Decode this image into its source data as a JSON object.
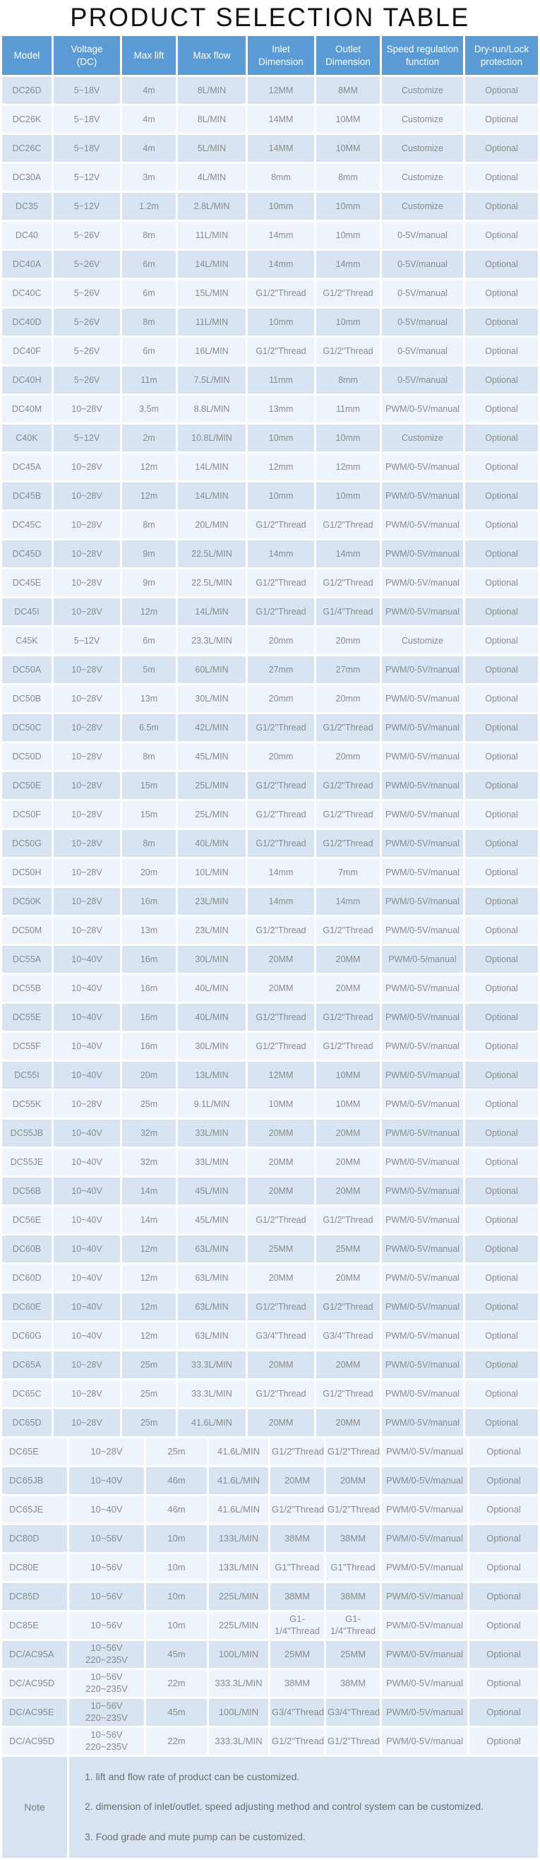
{
  "title": "PRODUCT SELECTION TABLE",
  "colors": {
    "header_bg": "#5b9bd5",
    "header_text": "#ffffff",
    "row_dark": "#d9e4f2",
    "row_light": "#eef4fb",
    "note_bg": "#d7e3f1",
    "cell_text": "#8a8a8a",
    "title_text": "#111111"
  },
  "table": {
    "columns": [
      "Model",
      "Voltage\n(DC)",
      "Max lift",
      "Max flow",
      "Inlet\nDimension",
      "Outlet\nDimension",
      "Speed regulation\nfunction",
      "Dry-run/Lock\nprotection"
    ],
    "fields": [
      "model",
      "voltage",
      "max_lift",
      "max_flow",
      "inlet",
      "outlet",
      "speed",
      "protection"
    ],
    "sections": [
      {
        "name": "upper",
        "start_index": 0,
        "rows": [
          {
            "model": "DC26D",
            "voltage": "5~18V",
            "max_lift": "4m",
            "max_flow": "8L/MIN",
            "inlet": "12MM",
            "outlet": "8MM",
            "speed": "Customize",
            "protection": "Optional"
          },
          {
            "model": "DC26K",
            "voltage": "5~18V",
            "max_lift": "4m",
            "max_flow": "8L/MIN",
            "inlet": "14MM",
            "outlet": "10MM",
            "speed": "Customize",
            "protection": "Optional"
          },
          {
            "model": "DC26C",
            "voltage": "5~18V",
            "max_lift": "4m",
            "max_flow": "5L/MIN",
            "inlet": "14MM",
            "outlet": "10MM",
            "speed": "Customize",
            "protection": "Optional"
          },
          {
            "model": "DC30A",
            "voltage": "5~12V",
            "max_lift": "3m",
            "max_flow": "4L/MIN",
            "inlet": "8mm",
            "outlet": "8mm",
            "speed": "Customize",
            "protection": "Optional"
          },
          {
            "model": "DC35",
            "voltage": "5~12V",
            "max_lift": "1.2m",
            "max_flow": "2.8L/MIN",
            "inlet": "10mm",
            "outlet": "10mm",
            "speed": "Customize",
            "protection": "Optional"
          },
          {
            "model": "DC40",
            "voltage": "5~26V",
            "max_lift": "8m",
            "max_flow": "11L/MIN",
            "inlet": "14mm",
            "outlet": "10mm",
            "speed": "0-5V/manual",
            "protection": "Optional"
          },
          {
            "model": "DC40A",
            "voltage": "5~26V",
            "max_lift": "6m",
            "max_flow": "14L/MIN",
            "inlet": "14mm",
            "outlet": "14mm",
            "speed": "0-5V/manual",
            "protection": "Optional"
          },
          {
            "model": "DC40C",
            "voltage": "5~26V",
            "max_lift": "6m",
            "max_flow": "15L/MIN",
            "inlet": "G1/2\"Thread",
            "outlet": "G1/2\"Thread",
            "speed": "0-5V/manual",
            "protection": "Optional"
          },
          {
            "model": "DC40D",
            "voltage": "5~26V",
            "max_lift": "8m",
            "max_flow": "11L/MIN",
            "inlet": "10mm",
            "outlet": "10mm",
            "speed": "0-5V/manual",
            "protection": "Optional"
          },
          {
            "model": "DC40F",
            "voltage": "5~26V",
            "max_lift": "6m",
            "max_flow": "16L/MIN",
            "inlet": "G1/2\"Thread",
            "outlet": "G1/2\"Thread",
            "speed": "0-5V/manual",
            "protection": "Optional"
          },
          {
            "model": "DC40H",
            "voltage": "5~26V",
            "max_lift": "11m",
            "max_flow": "7.5L/MIN",
            "inlet": "11mm",
            "outlet": "8mm",
            "speed": "0-5V/manual",
            "protection": "Optional"
          },
          {
            "model": "DC40M",
            "voltage": "10~28V",
            "max_lift": "3.5m",
            "max_flow": "8.8L/MIN",
            "inlet": "13mm",
            "outlet": "11mm",
            "speed": "PWM/0-5V/manual",
            "protection": "Optional"
          },
          {
            "model": "C40K",
            "voltage": "5~12V",
            "max_lift": "2m",
            "max_flow": "10.8L/MIN",
            "inlet": "10mm",
            "outlet": "10mm",
            "speed": "Customize",
            "protection": "Optional"
          },
          {
            "model": "DC45A",
            "voltage": "10~28V",
            "max_lift": "12m",
            "max_flow": "14L/MIN",
            "inlet": "12mm",
            "outlet": "12mm",
            "speed": "PWM/0-5V/manual",
            "protection": "Optional"
          },
          {
            "model": "DC45B",
            "voltage": "10~28V",
            "max_lift": "12m",
            "max_flow": "14L/MIN",
            "inlet": "10mm",
            "outlet": "10mm",
            "speed": "PWM/0-5V/manual",
            "protection": "Optional"
          },
          {
            "model": "DC45C",
            "voltage": "10~28V",
            "max_lift": "8m",
            "max_flow": "20L/MIN",
            "inlet": "G1/2\"Thread",
            "outlet": "G1/2\"Thread",
            "speed": "PWM/0-5V/manual",
            "protection": "Optional"
          },
          {
            "model": "DC45D",
            "voltage": "10~28V",
            "max_lift": "9m",
            "max_flow": "22.5L/MIN",
            "inlet": "14mm",
            "outlet": "14mm",
            "speed": "PWM/0-5V/manual",
            "protection": "Optional"
          },
          {
            "model": "DC45E",
            "voltage": "10~28V",
            "max_lift": "9m",
            "max_flow": "22.5L/MIN",
            "inlet": "G1/2\"Thread",
            "outlet": "G1/2\"Thread",
            "speed": "PWM/0-5V/manual",
            "protection": "Optional"
          },
          {
            "model": "DC45I",
            "voltage": "10~28V",
            "max_lift": "12m",
            "max_flow": "14L/MIN",
            "inlet": "G1/2\"Thread",
            "outlet": "G1/4\"Thread",
            "speed": "PWM/0-5V/manual",
            "protection": "Optional"
          },
          {
            "model": "C45K",
            "voltage": "5~12V",
            "max_lift": "6m",
            "max_flow": "23.3L/MIN",
            "inlet": "20mm",
            "outlet": "20mm",
            "speed": "Customize",
            "protection": "Optional"
          },
          {
            "model": "DC50A",
            "voltage": "10~28V",
            "max_lift": "5m",
            "max_flow": "60L/MIN",
            "inlet": "27mm",
            "outlet": "27mm",
            "speed": "PWM/0-5V/manual",
            "protection": "Optional"
          },
          {
            "model": "DC50B",
            "voltage": "10~28V",
            "max_lift": "13m",
            "max_flow": "30L/MIN",
            "inlet": "20mm",
            "outlet": "20mm",
            "speed": "PWM/0-5V/manual",
            "protection": "Optional"
          },
          {
            "model": "DC50C",
            "voltage": "10~28V",
            "max_lift": "6.5m",
            "max_flow": "42L/MIN",
            "inlet": "G1/2\"Thread",
            "outlet": "G1/2\"Thread",
            "speed": "PWM/0-5V/manual",
            "protection": "Optional"
          },
          {
            "model": "DC50D",
            "voltage": "10~28V",
            "max_lift": "8m",
            "max_flow": "45L/MIN",
            "inlet": "20mm",
            "outlet": "20mm",
            "speed": "PWM/0-5V/manual",
            "protection": "Optional"
          },
          {
            "model": "DC50E",
            "voltage": "10~28V",
            "max_lift": "15m",
            "max_flow": "25L/MIN",
            "inlet": "G1/2\"Thread",
            "outlet": "G1/2\"Thread",
            "speed": "PWM/0-5V/manual",
            "protection": "Optional"
          },
          {
            "model": "DC50F",
            "voltage": "10~28V",
            "max_lift": "15m",
            "max_flow": "25L/MIN",
            "inlet": "G1/2\"Thread",
            "outlet": "G1/2\"Thread",
            "speed": "PWM/0-5V/manual",
            "protection": "Optional"
          },
          {
            "model": "DC50G",
            "voltage": "10~28V",
            "max_lift": "8m",
            "max_flow": "40L/MIN",
            "inlet": "G1/2\"Thread",
            "outlet": "G1/2\"Thread",
            "speed": "PWM/0-5V/manual",
            "protection": "Optional"
          },
          {
            "model": "DC50H",
            "voltage": "10~28V",
            "max_lift": "20m",
            "max_flow": "10L/MIN",
            "inlet": "14mm",
            "outlet": "7mm",
            "speed": "PWM/0-5V/manual",
            "protection": "Optional"
          },
          {
            "model": "DC50K",
            "voltage": "10~28V",
            "max_lift": "16m",
            "max_flow": "23L/MIN",
            "inlet": "14mm",
            "outlet": "14mm",
            "speed": "PWM/0-5V/manual",
            "protection": "Optional"
          },
          {
            "model": "DC50M",
            "voltage": "10~28V",
            "max_lift": "13m",
            "max_flow": "23L/MIN",
            "inlet": "G1/2\"Thread",
            "outlet": "G1/2\"Thread",
            "speed": "PWM/0-5V/manual",
            "protection": "Optional"
          },
          {
            "model": "DC55A",
            "voltage": "10~40V",
            "max_lift": "16m",
            "max_flow": "30L/MIN",
            "inlet": "20MM",
            "outlet": "20MM",
            "speed": "PWM/0-5/manual",
            "protection": "Optional"
          },
          {
            "model": "DC55B",
            "voltage": "10~40V",
            "max_lift": "16m",
            "max_flow": "40L/MIN",
            "inlet": "20MM",
            "outlet": "20MM",
            "speed": "PWM/0-5V/manual",
            "protection": "Optional"
          },
          {
            "model": "DC55E",
            "voltage": "10~40V",
            "max_lift": "16m",
            "max_flow": "40L/MIN",
            "inlet": "G1/2\"Thread",
            "outlet": "G1/2\"Thread",
            "speed": "PWM/0-5V/manual",
            "protection": "Optional"
          },
          {
            "model": "DC55F",
            "voltage": "10~40V",
            "max_lift": "16m",
            "max_flow": "30L/MIN",
            "inlet": "G1/2\"Thread",
            "outlet": "G1/2\"Thread",
            "speed": "PWM/0-5V/manual",
            "protection": "Optional"
          },
          {
            "model": "DC55I",
            "voltage": "10~40V",
            "max_lift": "20m",
            "max_flow": "13L/MIN",
            "inlet": "12MM",
            "outlet": "10MM",
            "speed": "PWM/0-5V/manual",
            "protection": "Optional"
          },
          {
            "model": "DC55K",
            "voltage": "10~28V",
            "max_lift": "25m",
            "max_flow": "9.1L/MIN",
            "inlet": "10MM",
            "outlet": "10MM",
            "speed": "PWM/0-5V/manual",
            "protection": "Optional"
          },
          {
            "model": "DC55JB",
            "voltage": "10~40V",
            "max_lift": "32m",
            "max_flow": "33L/MIN",
            "inlet": "20MM",
            "outlet": "20MM",
            "speed": "PWM/0-5V/manual",
            "protection": "Optional"
          },
          {
            "model": "DC55JE",
            "voltage": "10~40V",
            "max_lift": "32m",
            "max_flow": "33L/MIN",
            "inlet": "20MM",
            "outlet": "20MM",
            "speed": "PWM/0-5V/manual",
            "protection": "Optional"
          },
          {
            "model": "DC56B",
            "voltage": "10~40V",
            "max_lift": "14m",
            "max_flow": "45L/MIN",
            "inlet": "20MM",
            "outlet": "20MM",
            "speed": "PWM/0-5V/manual",
            "protection": "Optional"
          },
          {
            "model": "DC56E",
            "voltage": "10~40V",
            "max_lift": "14m",
            "max_flow": "45L/MIN",
            "inlet": "G1/2\"Thread",
            "outlet": "G1/2\"Thread",
            "speed": "PWM/0-5V/manual",
            "protection": "Optional"
          },
          {
            "model": "DC60B",
            "voltage": "10~40V",
            "max_lift": "12m",
            "max_flow": "63L/MIN",
            "inlet": "25MM",
            "outlet": "25MM",
            "speed": "PWM/0-5V/manual",
            "protection": "Optional"
          },
          {
            "model": "DC60D",
            "voltage": "10~40V",
            "max_lift": "12m",
            "max_flow": "63L/MIN",
            "inlet": "20MM",
            "outlet": "20MM",
            "speed": "PWM/0-5V/manual",
            "protection": "Optional"
          },
          {
            "model": "DC60E",
            "voltage": "10~40V",
            "max_lift": "12m",
            "max_flow": "63L/MIN",
            "inlet": "G1/2\"Thread",
            "outlet": "G1/2\"Thread",
            "speed": "PWM/0-5V/manual",
            "protection": "Optional"
          },
          {
            "model": "DC60G",
            "voltage": "10~40V",
            "max_lift": "12m",
            "max_flow": "63L/MIN",
            "inlet": "G3/4\"Thread",
            "outlet": "G3/4\"Thread",
            "speed": "PWM/0-5V/manual",
            "protection": "Optional"
          },
          {
            "model": "DC65A",
            "voltage": "10~28V",
            "max_lift": "25m",
            "max_flow": "33.3L/MIN",
            "inlet": "20MM",
            "outlet": "20MM",
            "speed": "PWM/0-5V/manual",
            "protection": "Optional"
          },
          {
            "model": "DC65C",
            "voltage": "10~28V",
            "max_lift": "25m",
            "max_flow": "33.3L/MIN",
            "inlet": "G1/2\"Thread",
            "outlet": "G1/2\"Thread",
            "speed": "PWM/0-5V/manual",
            "protection": "Optional"
          },
          {
            "model": "DC65D",
            "voltage": "10~28V",
            "max_lift": "25m",
            "max_flow": "41.6L/MIN",
            "inlet": "20MM",
            "outlet": "20MM",
            "speed": "PWM/0-5V/manual",
            "protection": "Optional"
          }
        ]
      },
      {
        "name": "lower",
        "start_index": 47,
        "rows": [
          {
            "model": "DC65E",
            "voltage": "10~28V",
            "max_lift": "25m",
            "max_flow": "41.6L/MIN",
            "inlet": "G1/2\"Thread",
            "outlet": "G1/2\"Thread",
            "speed": "PWM/0-5V/manual",
            "protection": "Optional"
          },
          {
            "model": "DC65JB",
            "voltage": "10~40V",
            "max_lift": "46m",
            "max_flow": "41.6L/MIN",
            "inlet": "20MM",
            "outlet": "20MM",
            "speed": "PWM/0-5V/manual",
            "protection": "Optional"
          },
          {
            "model": "DC65JE",
            "voltage": "10~40V",
            "max_lift": "46m",
            "max_flow": "41.6L/MIN",
            "inlet": "G1/2\"Thread",
            "outlet": "G1/2\"Thread",
            "speed": "PWM/0-5V/manual",
            "protection": "Optional"
          },
          {
            "model": "DC80D",
            "voltage": "10~56V",
            "max_lift": "10m",
            "max_flow": "133L/MIN",
            "inlet": "38MM",
            "outlet": "38MM",
            "speed": "PWM/0-5V/manual",
            "protection": "Optional"
          },
          {
            "model": "DC80E",
            "voltage": "10~56V",
            "max_lift": "10m",
            "max_flow": "133L/MIN",
            "inlet": "G1\"Thread",
            "outlet": "G1\"Thread",
            "speed": "PWM/0-5V/manual",
            "protection": "Optional"
          },
          {
            "model": "DC85D",
            "voltage": "10~56V",
            "max_lift": "10m",
            "max_flow": "225L/MIN",
            "inlet": "38MM",
            "outlet": "38MM",
            "speed": "PWM/0-5V/manual",
            "protection": "Optional"
          },
          {
            "model": "DC85E",
            "voltage": "10~56V",
            "max_lift": "10m",
            "max_flow": "225L/MIN",
            "inlet": "G1-1/4\"Thread",
            "outlet": "G1-1/4\"Thread",
            "speed": "PWM/0-5V/manual",
            "protection": "Optional"
          },
          {
            "model": "DC/AC95A",
            "voltage": "10~56V\n220~235V",
            "max_lift": "45m",
            "max_flow": "100L/MIN",
            "inlet": "25MM",
            "outlet": "25MM",
            "speed": "PWM/0-5V/manual",
            "protection": "Optional"
          },
          {
            "model": "DC/AC95D",
            "voltage": "10~56V\n220~235V",
            "max_lift": "22m",
            "max_flow": "333.3L/MIN",
            "inlet": "38MM",
            "outlet": "38MM",
            "speed": "PWM/0-5V/manual",
            "protection": "Optional"
          },
          {
            "model": "DC/AC95E",
            "voltage": "10~56V\n220~235V",
            "max_lift": "45m",
            "max_flow": "100L/MIN",
            "inlet": "G3/4\"Thread",
            "outlet": "G3/4\"Thread",
            "speed": "PWM/0-5V/manual",
            "protection": "Optional"
          },
          {
            "model": "DC/AC95D",
            "voltage": "10~56V\n220~235V",
            "max_lift": "22m",
            "max_flow": "333.3L/MIN",
            "inlet": "G1/2\"Thread",
            "outlet": "G1/2\"Thread",
            "speed": "PWM/0-5V/manual",
            "protection": "Optional"
          }
        ]
      }
    ],
    "note": {
      "label": "Note",
      "items": [
        "1. lift and flow rate of product can be customized.",
        "2. dimension of inlet/outlet, speed adjusting method and control system can be customized.",
        "3. Food grade and mute pump can be customized."
      ]
    }
  }
}
